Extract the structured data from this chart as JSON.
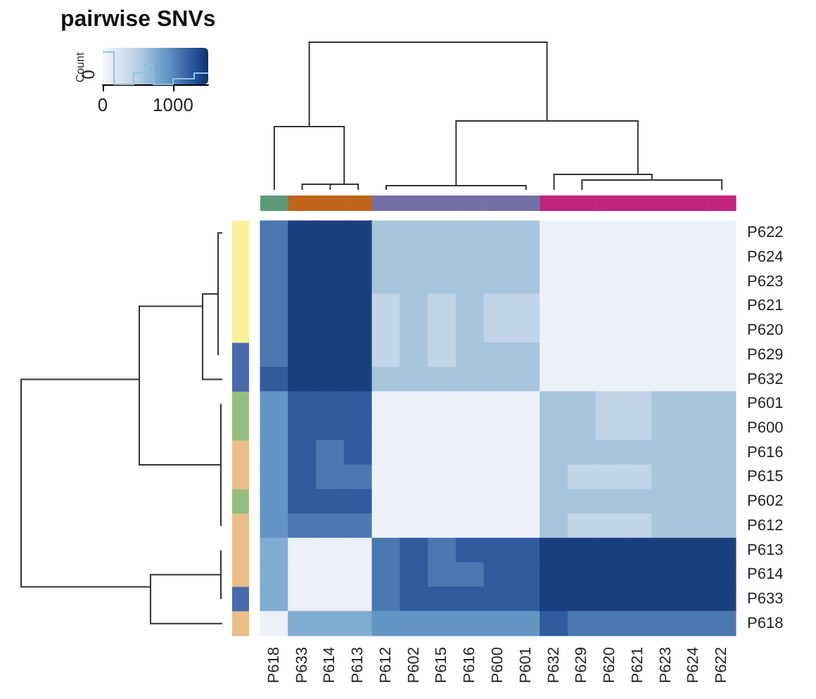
{
  "chart_data": {
    "type": "heatmap",
    "clabel": "pairwise SNVs",
    "annotations": [
      "Count",
      "0"
    ],
    "categories": [
      "P618",
      "P633",
      "P614",
      "P613",
      "P612",
      "P602",
      "P615",
      "P616",
      "P600",
      "P601",
      "P632",
      "P629",
      "P620",
      "P621",
      "P623",
      "P624",
      "P622"
    ],
    "y_categories": [
      "P622",
      "P624",
      "P623",
      "P621",
      "P620",
      "P629",
      "P632",
      "P601",
      "P600",
      "P616",
      "P615",
      "P602",
      "P612",
      "P613",
      "P614",
      "P633",
      "P618"
    ],
    "cells": [
      [
        1080,
        1420,
        1420,
        1420,
        580,
        580,
        580,
        580,
        580,
        580,
        80,
        80,
        80,
        80,
        80,
        80,
        80
      ],
      [
        1080,
        1420,
        1420,
        1420,
        580,
        580,
        580,
        580,
        580,
        580,
        80,
        80,
        80,
        80,
        80,
        80,
        80
      ],
      [
        1080,
        1420,
        1420,
        1420,
        580,
        580,
        580,
        580,
        580,
        580,
        80,
        80,
        80,
        80,
        80,
        80,
        80
      ],
      [
        1080,
        1420,
        1420,
        1420,
        420,
        580,
        420,
        580,
        420,
        420,
        80,
        80,
        80,
        80,
        80,
        80,
        80
      ],
      [
        1080,
        1420,
        1420,
        1420,
        420,
        580,
        420,
        580,
        420,
        420,
        80,
        80,
        80,
        80,
        80,
        80,
        80
      ],
      [
        1080,
        1420,
        1420,
        1420,
        420,
        580,
        420,
        580,
        580,
        580,
        80,
        80,
        80,
        80,
        80,
        80,
        80
      ],
      [
        1250,
        1420,
        1420,
        1420,
        580,
        580,
        580,
        580,
        580,
        580,
        80,
        80,
        80,
        80,
        80,
        80,
        80
      ],
      [
        920,
        1250,
        1250,
        1250,
        80,
        80,
        80,
        80,
        80,
        80,
        580,
        580,
        420,
        420,
        580,
        580,
        580
      ],
      [
        920,
        1250,
        1250,
        1250,
        80,
        80,
        80,
        80,
        80,
        80,
        580,
        580,
        420,
        420,
        580,
        580,
        580
      ],
      [
        920,
        1250,
        1080,
        1250,
        80,
        80,
        80,
        80,
        80,
        80,
        580,
        580,
        580,
        580,
        580,
        580,
        580
      ],
      [
        920,
        1250,
        1080,
        1080,
        80,
        80,
        80,
        80,
        80,
        80,
        580,
        420,
        420,
        420,
        580,
        580,
        580
      ],
      [
        920,
        1250,
        1250,
        1250,
        80,
        80,
        80,
        80,
        80,
        80,
        580,
        580,
        580,
        580,
        580,
        580,
        580
      ],
      [
        920,
        1080,
        1080,
        1080,
        80,
        80,
        80,
        80,
        80,
        80,
        580,
        420,
        420,
        420,
        580,
        580,
        580
      ],
      [
        750,
        80,
        80,
        80,
        1080,
        1250,
        1080,
        1250,
        1250,
        1250,
        1420,
        1420,
        1420,
        1420,
        1420,
        1420,
        1420
      ],
      [
        750,
        80,
        80,
        80,
        1080,
        1250,
        1080,
        1080,
        1250,
        1250,
        1420,
        1420,
        1420,
        1420,
        1420,
        1420,
        1420
      ],
      [
        750,
        80,
        80,
        80,
        1080,
        1250,
        1250,
        1250,
        1250,
        1250,
        1420,
        1420,
        1420,
        1420,
        1420,
        1420,
        1420
      ],
      [
        80,
        750,
        750,
        750,
        920,
        920,
        920,
        920,
        920,
        920,
        1250,
        1080,
        1080,
        1080,
        1080,
        1080,
        1080
      ]
    ],
    "colors": [
      "#f5f7fb",
      "#dfe6f1",
      "#c9d8ea",
      "#acc8df",
      "#80acd3",
      "#6094c4",
      "#456eaa",
      "#255297",
      "#11306b"
    ],
    "clim": [
      0,
      1500
    ],
    "cticks": [
      0,
      1000
    ]
  }
}
